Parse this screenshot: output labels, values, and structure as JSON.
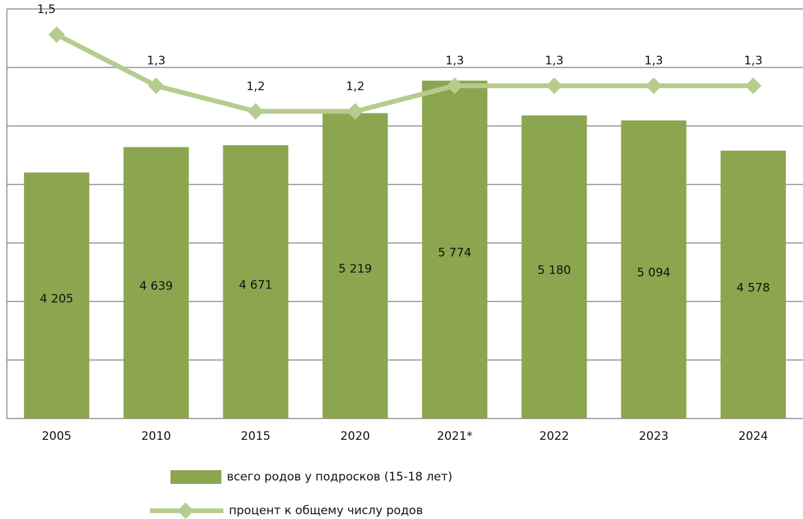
{
  "chart_data": {
    "type": "bar_line",
    "categories": [
      "2005",
      "2010",
      "2015",
      "2020",
      "2021*",
      "2022",
      "2023",
      "2024"
    ],
    "series": [
      {
        "name": "всего родов у подросков (15-18 лет)",
        "type": "bar",
        "color": "#8ba64f",
        "values": [
          4205,
          4639,
          4671,
          5219,
          5774,
          5180,
          5094,
          4578
        ],
        "value_labels": [
          "4 205",
          "4 639",
          "4 671",
          "5 219",
          "5 774",
          "5 180",
          "5 094",
          "4 578"
        ]
      },
      {
        "name": "процент к общему числу родов",
        "type": "line",
        "axis": "y2",
        "color": "#b5cc8e",
        "values": [
          1.5,
          1.3,
          1.2,
          1.2,
          1.3,
          1.3,
          1.3,
          1.3
        ],
        "value_labels": [
          "1,5",
          "1,3",
          "1,2",
          "1,2",
          "1,3",
          "1,3",
          "1,3",
          "1,3"
        ]
      }
    ],
    "ylim": [
      0,
      7000
    ],
    "yticks": [
      0,
      1000,
      2000,
      3000,
      4000,
      5000,
      6000,
      7000
    ],
    "y2lim": [
      0,
      1.6
    ],
    "grid": true,
    "legend": "bottom"
  }
}
